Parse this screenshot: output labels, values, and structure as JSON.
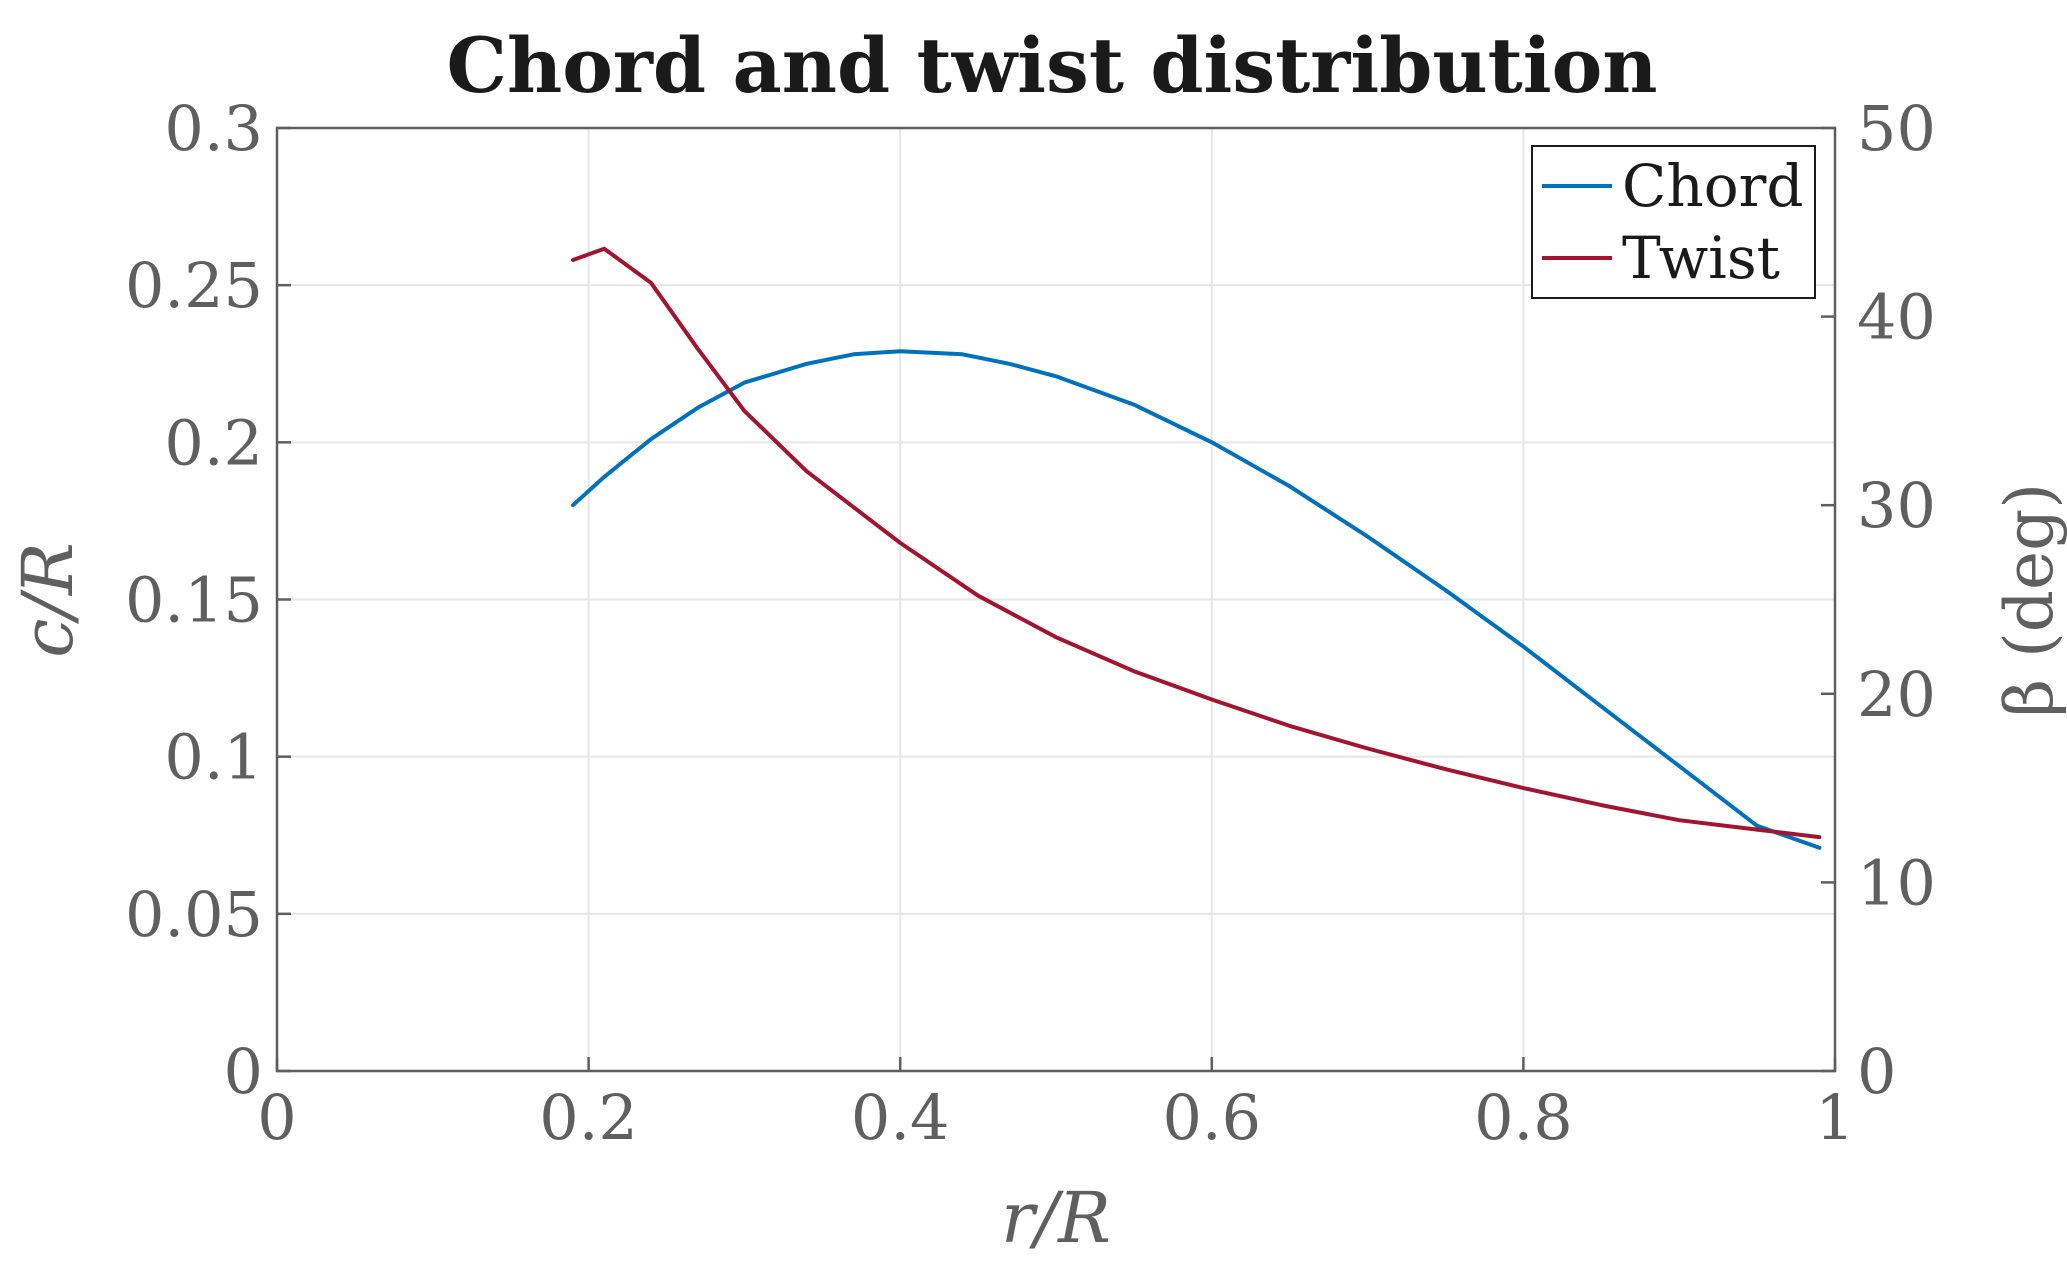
{
  "chart_data": {
    "type": "line",
    "title": "Chord and twist distribution",
    "xlabel": "r/R",
    "ylabel_left": "c/R",
    "ylabel_right": "β (deg)",
    "xlim": [
      0,
      1
    ],
    "ylim_left": [
      0,
      0.3
    ],
    "ylim_right": [
      0,
      50
    ],
    "x_ticks": [
      "0",
      "0.2",
      "0.4",
      "0.6",
      "0.8",
      "1"
    ],
    "y_left_ticks": [
      "0",
      "0.05",
      "0.1",
      "0.15",
      "0.2",
      "0.25",
      "0.3"
    ],
    "y_right_ticks": [
      "0",
      "10",
      "20",
      "30",
      "40",
      "50"
    ],
    "grid": true,
    "legend_position": "top-right",
    "series": [
      {
        "name": "Chord",
        "axis": "left",
        "color": "#0072BD",
        "x": [
          0.19,
          0.21,
          0.24,
          0.27,
          0.3,
          0.34,
          0.37,
          0.4,
          0.44,
          0.47,
          0.5,
          0.55,
          0.6,
          0.65,
          0.7,
          0.75,
          0.8,
          0.85,
          0.9,
          0.95,
          0.99
        ],
        "y": [
          0.18,
          0.189,
          0.201,
          0.211,
          0.219,
          0.225,
          0.228,
          0.229,
          0.228,
          0.225,
          0.221,
          0.212,
          0.2,
          0.186,
          0.17,
          0.153,
          0.135,
          0.116,
          0.097,
          0.078,
          0.071
        ]
      },
      {
        "name": "Twist",
        "axis": "right",
        "color": "#A2142F",
        "x": [
          0.19,
          0.21,
          0.24,
          0.27,
          0.3,
          0.34,
          0.4,
          0.45,
          0.5,
          0.55,
          0.6,
          0.65,
          0.7,
          0.75,
          0.8,
          0.85,
          0.9,
          0.95,
          0.99
        ],
        "y": [
          43.0,
          43.6,
          41.8,
          38.3,
          35.0,
          31.8,
          28.0,
          25.2,
          23.0,
          21.2,
          19.7,
          18.3,
          17.1,
          16.0,
          15.0,
          14.1,
          13.3,
          12.8,
          12.4
        ]
      }
    ]
  }
}
